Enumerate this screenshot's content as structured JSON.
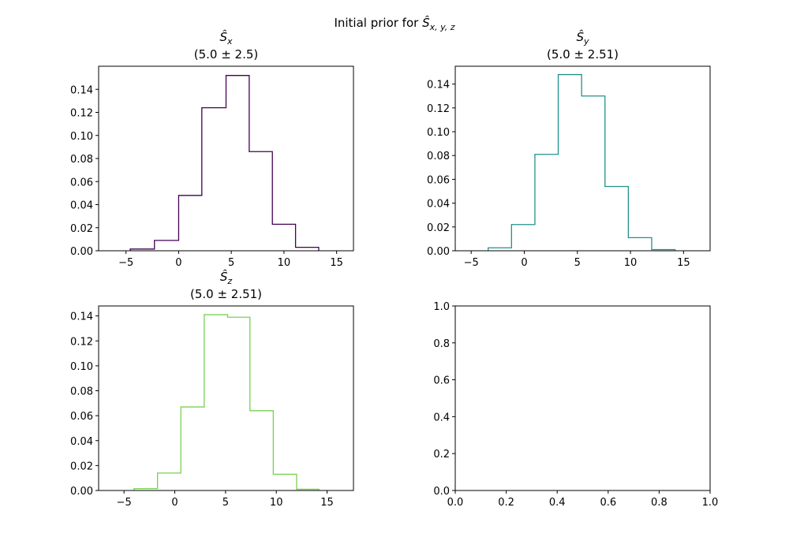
{
  "figure": {
    "suptitle_prefix": "Initial prior for ",
    "suptitle_symbol": "Ŝ",
    "suptitle_sub": "x, y, z"
  },
  "chart_data": [
    {
      "type": "histogram",
      "title_symbol": "Ŝ",
      "title_sub": "x",
      "subtitle": "(5.0 ± 2.5)",
      "color": "#440154",
      "bin_edges": [
        -4.6,
        -2.3,
        0.0,
        2.2,
        4.5,
        6.7,
        8.9,
        11.1,
        13.3
      ],
      "values": [
        0.0015,
        0.009,
        0.048,
        0.124,
        0.152,
        0.086,
        0.023,
        0.003
      ],
      "xlim": [
        -7.6,
        16.6
      ],
      "ylim": [
        0,
        0.16
      ],
      "xticks": [
        -5,
        0,
        5,
        10,
        15
      ],
      "xtick_labels": [
        "−5",
        "0",
        "5",
        "10",
        "15"
      ],
      "yticks": [
        0.0,
        0.02,
        0.04,
        0.06,
        0.08,
        0.1,
        0.12,
        0.14
      ],
      "ytick_labels": [
        "0.00",
        "0.02",
        "0.04",
        "0.06",
        "0.08",
        "0.10",
        "0.12",
        "0.14"
      ]
    },
    {
      "type": "histogram",
      "title_symbol": "Ŝ",
      "title_sub": "y",
      "subtitle": "(5.0 ± 2.51)",
      "color": "#21918c",
      "bin_edges": [
        -3.4,
        -1.2,
        1.0,
        3.2,
        5.4,
        7.6,
        9.8,
        12.0,
        14.2
      ],
      "values": [
        0.0025,
        0.022,
        0.081,
        0.148,
        0.13,
        0.054,
        0.011,
        0.001
      ],
      "xlim": [
        -6.5,
        17.5
      ],
      "ylim": [
        0,
        0.155
      ],
      "xticks": [
        -5,
        0,
        5,
        10,
        15
      ],
      "xtick_labels": [
        "−5",
        "0",
        "5",
        "10",
        "15"
      ],
      "yticks": [
        0.0,
        0.02,
        0.04,
        0.06,
        0.08,
        0.1,
        0.12,
        0.14
      ],
      "ytick_labels": [
        "0.00",
        "0.02",
        "0.04",
        "0.06",
        "0.08",
        "0.10",
        "0.12",
        "0.14"
      ]
    },
    {
      "type": "histogram",
      "title_symbol": "Ŝ",
      "title_sub": "z",
      "subtitle": "(5.0 ± 2.51)",
      "color": "#7ad151",
      "bin_edges": [
        -4.0,
        -1.7,
        0.6,
        2.9,
        5.2,
        7.4,
        9.7,
        12.0,
        14.2
      ],
      "values": [
        0.0015,
        0.014,
        0.067,
        0.141,
        0.139,
        0.064,
        0.013,
        0.001
      ],
      "xlim": [
        -7.5,
        17.6
      ],
      "ylim": [
        0,
        0.148
      ],
      "xticks": [
        -5,
        0,
        5,
        10,
        15
      ],
      "xtick_labels": [
        "−5",
        "0",
        "5",
        "10",
        "15"
      ],
      "yticks": [
        0.0,
        0.02,
        0.04,
        0.06,
        0.08,
        0.1,
        0.12,
        0.14
      ],
      "ytick_labels": [
        "0.00",
        "0.02",
        "0.04",
        "0.06",
        "0.08",
        "0.10",
        "0.12",
        "0.14"
      ]
    },
    {
      "type": "empty",
      "xlim": [
        0,
        1
      ],
      "ylim": [
        0,
        1
      ],
      "xticks": [
        0,
        0.2,
        0.4,
        0.6,
        0.8,
        1.0
      ],
      "xtick_labels": [
        "0.0",
        "0.2",
        "0.4",
        "0.6",
        "0.8",
        "1.0"
      ],
      "yticks": [
        0,
        0.2,
        0.4,
        0.6,
        0.8,
        1.0
      ],
      "ytick_labels": [
        "0.0",
        "0.2",
        "0.4",
        "0.6",
        "0.8",
        "1.0"
      ]
    }
  ]
}
